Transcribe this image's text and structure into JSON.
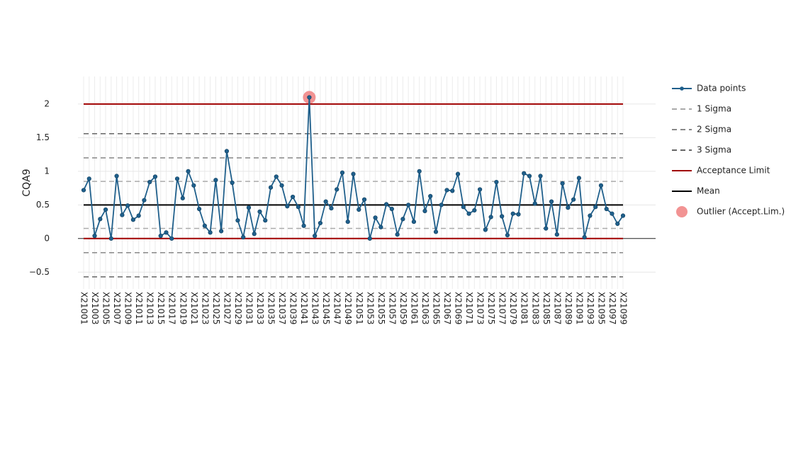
{
  "chart_data": {
    "type": "line",
    "y_label": "CQA9",
    "categories": [
      "X21001",
      null,
      "X21003",
      null,
      "X21005",
      null,
      "X21007",
      null,
      "X21009",
      null,
      "X21011",
      null,
      "X21013",
      null,
      "X21015",
      null,
      "X21017",
      null,
      "X21019",
      null,
      "X21021",
      null,
      "X21023",
      null,
      "X21025",
      null,
      "X21027",
      null,
      "X21029",
      null,
      "X21031",
      null,
      "X21033",
      null,
      "X21035",
      null,
      "X21037",
      null,
      "X21039",
      null,
      "X21041",
      null,
      "X21043",
      null,
      "X21045",
      null,
      "X21047",
      null,
      "X21049",
      null,
      "X21051",
      null,
      "X21053",
      null,
      "X21055",
      null,
      "X21057",
      null,
      "X21059",
      null,
      "X21061",
      null,
      "X21063",
      null,
      "X21065",
      null,
      "X21067",
      null,
      "X21069",
      null,
      "X21071",
      null,
      "X21073",
      null,
      "X21075",
      null,
      "X21077",
      null,
      "X21079",
      null,
      "X21081",
      null,
      "X21083",
      null,
      "X21085",
      null,
      "X21087",
      null,
      "X21089",
      null,
      "X21091",
      null,
      "X21093",
      null,
      "X21095",
      null,
      "X21097",
      null,
      "X21099"
    ],
    "series": [
      {
        "name": "Data points",
        "color": "#1f5f8b",
        "values": [
          0.72,
          0.89,
          0.04,
          0.29,
          0.43,
          0.0,
          0.93,
          0.35,
          0.49,
          0.28,
          0.34,
          0.57,
          0.84,
          0.92,
          0.04,
          0.09,
          0.0,
          0.89,
          0.6,
          1.0,
          0.79,
          0.44,
          0.19,
          0.09,
          0.87,
          0.11,
          1.3,
          0.83,
          0.27,
          0.02,
          0.46,
          0.07,
          0.4,
          0.27,
          0.76,
          0.92,
          0.79,
          0.48,
          0.62,
          0.47,
          0.19,
          2.1,
          0.04,
          0.23,
          0.55,
          0.45,
          0.73,
          0.98,
          0.25,
          0.96,
          0.43,
          0.58,
          0.0,
          0.31,
          0.17,
          0.51,
          0.44,
          0.06,
          0.29,
          0.5,
          0.25,
          1.0,
          0.41,
          0.63,
          0.1,
          0.5,
          0.72,
          0.71,
          0.96,
          0.47,
          0.37,
          0.42,
          0.73,
          0.13,
          0.32,
          0.84,
          0.33,
          0.05,
          0.37,
          0.36,
          0.97,
          0.93,
          0.52,
          0.93,
          0.15,
          0.55,
          0.06,
          0.82,
          0.46,
          0.58,
          0.9,
          0.02,
          0.34,
          0.47,
          0.79,
          0.44,
          0.37,
          0.22,
          0.34
        ]
      }
    ],
    "reference_lines": [
      {
        "name": "1 Sigma",
        "color": "#aaaaaa",
        "dashed": true,
        "values": [
          0.85,
          0.15
        ]
      },
      {
        "name": "2 Sigma",
        "color": "#888888",
        "dashed": true,
        "values": [
          1.2,
          -0.21
        ]
      },
      {
        "name": "3 Sigma",
        "color": "#666666",
        "dashed": true,
        "values": [
          1.56,
          -0.57
        ]
      },
      {
        "name": "Acceptance Limit",
        "color": "#a00000",
        "dashed": false,
        "values": [
          2,
          0
        ]
      },
      {
        "name": "Mean",
        "color": "#000000",
        "dashed": false,
        "values": [
          0.5
        ]
      }
    ],
    "outliers": {
      "name": "Outlier (Accept.Lim.)",
      "color": "#f08080",
      "values": [
        null,
        null,
        null,
        null,
        null,
        null,
        null,
        null,
        null,
        null,
        null,
        null,
        null,
        null,
        null,
        null,
        null,
        null,
        null,
        null,
        null,
        null,
        null,
        null,
        null,
        null,
        null,
        null,
        null,
        null,
        null,
        null,
        null,
        null,
        null,
        null,
        null,
        null,
        null,
        null,
        null,
        2.1,
        null,
        null,
        null,
        null,
        null,
        null,
        null,
        null,
        null,
        null,
        null,
        null,
        null,
        null,
        null,
        null,
        null,
        null,
        null,
        null,
        null,
        null,
        null,
        null,
        null,
        null,
        null,
        null,
        null,
        null,
        null,
        null,
        null,
        null,
        null,
        null,
        null,
        null,
        null,
        null,
        null,
        null,
        null,
        null,
        null,
        null,
        null,
        null,
        null,
        null,
        null,
        null,
        null,
        null,
        null,
        null,
        null
      ]
    },
    "ylim": [
      -0.75,
      2.41
    ],
    "yticks": [
      {
        "value": -0.5,
        "label": "−0.5"
      },
      0,
      0.5,
      1,
      1.5,
      2
    ],
    "grid": true,
    "legend": "right"
  }
}
